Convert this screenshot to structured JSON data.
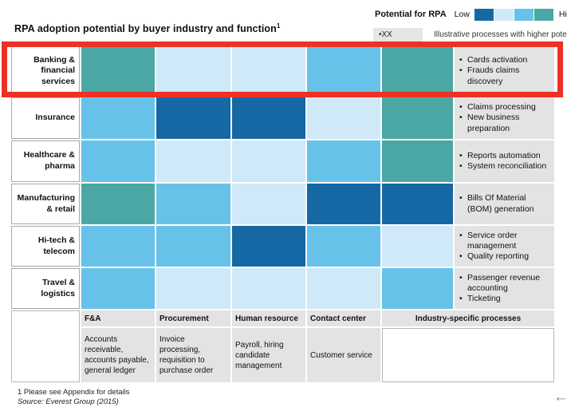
{
  "ui": {
    "bullet": "•"
  },
  "page": {
    "title": "RPA adoption potential by buyer industry and function",
    "title_footnote_marker": "1",
    "footnote": "1  Please see Appendix for details",
    "source": "Source: Everest Group (2015)",
    "back_arrow": "←"
  },
  "legend": {
    "scale_title": "Potential for RPA",
    "low_label": "Low",
    "high_label": "High",
    "marker_label": "•XX",
    "marker_description": "Illustrative processes with higher potential"
  },
  "annotation": {
    "type": "red-highlight-box",
    "highlighted_row": "Banking & financial services",
    "color": "#ee3124"
  },
  "chart_data": {
    "type": "heatmap",
    "title": "RPA adoption potential by buyer industry and function",
    "x_categories": [
      "F&A",
      "Procurement",
      "Human resource",
      "Contact center",
      "Industry-specific processes"
    ],
    "y_categories": [
      "Banking & financial services",
      "Insurance",
      "Healthcare & pharma",
      "Manufacturing & retail",
      "Hi-tech & telecom",
      "Travel & logistics"
    ],
    "scale_note": "Legend runs Low to High over 4 colors: 1=dark blue (low), 2=pale blue, 3=sky blue, 4=teal (high)",
    "palette": [
      "#1668a5",
      "#cfe9f8",
      "#67c2e9",
      "#4ba7a3"
    ],
    "palette_meaning": [
      "low",
      "medium-low",
      "medium-high",
      "high"
    ],
    "legend_levels": [
      1,
      2,
      3,
      4
    ],
    "values": [
      [
        4,
        2,
        2,
        3,
        4
      ],
      [
        3,
        1,
        1,
        2,
        4
      ],
      [
        3,
        2,
        2,
        3,
        4
      ],
      [
        4,
        3,
        2,
        1,
        1
      ],
      [
        3,
        3,
        1,
        3,
        2
      ],
      [
        3,
        2,
        2,
        2,
        3
      ]
    ]
  },
  "grid": {
    "columns": [
      {
        "label": "F&A",
        "description": "Accounts receivable, accounts payable, general ledger"
      },
      {
        "label": "Procurement",
        "description": "Invoice processing, requisition to purchase order"
      },
      {
        "label": "Human resource",
        "description": "Payroll, hiring candidate management"
      },
      {
        "label": "Contact center",
        "description": "Customer service"
      },
      {
        "label": "Industry-specific processes",
        "description": ""
      }
    ],
    "rows": [
      {
        "industry": "Banking & financial services",
        "processes": [
          "Cards activation",
          "Frauds claims discovery"
        ]
      },
      {
        "industry": "Insurance",
        "processes": [
          "Claims processing",
          "New business preparation"
        ]
      },
      {
        "industry": "Healthcare & pharma",
        "processes": [
          "Reports automation",
          "System reconciliation"
        ]
      },
      {
        "industry": "Manufacturing & retail",
        "processes": [
          "Bills Of Material (BOM) generation"
        ]
      },
      {
        "industry": "Hi-tech & telecom",
        "processes": [
          "Service order management",
          "Quality reporting"
        ]
      },
      {
        "industry": "Travel & logistics",
        "processes": [
          "Passenger revenue accounting",
          "Ticketing"
        ]
      }
    ]
  }
}
